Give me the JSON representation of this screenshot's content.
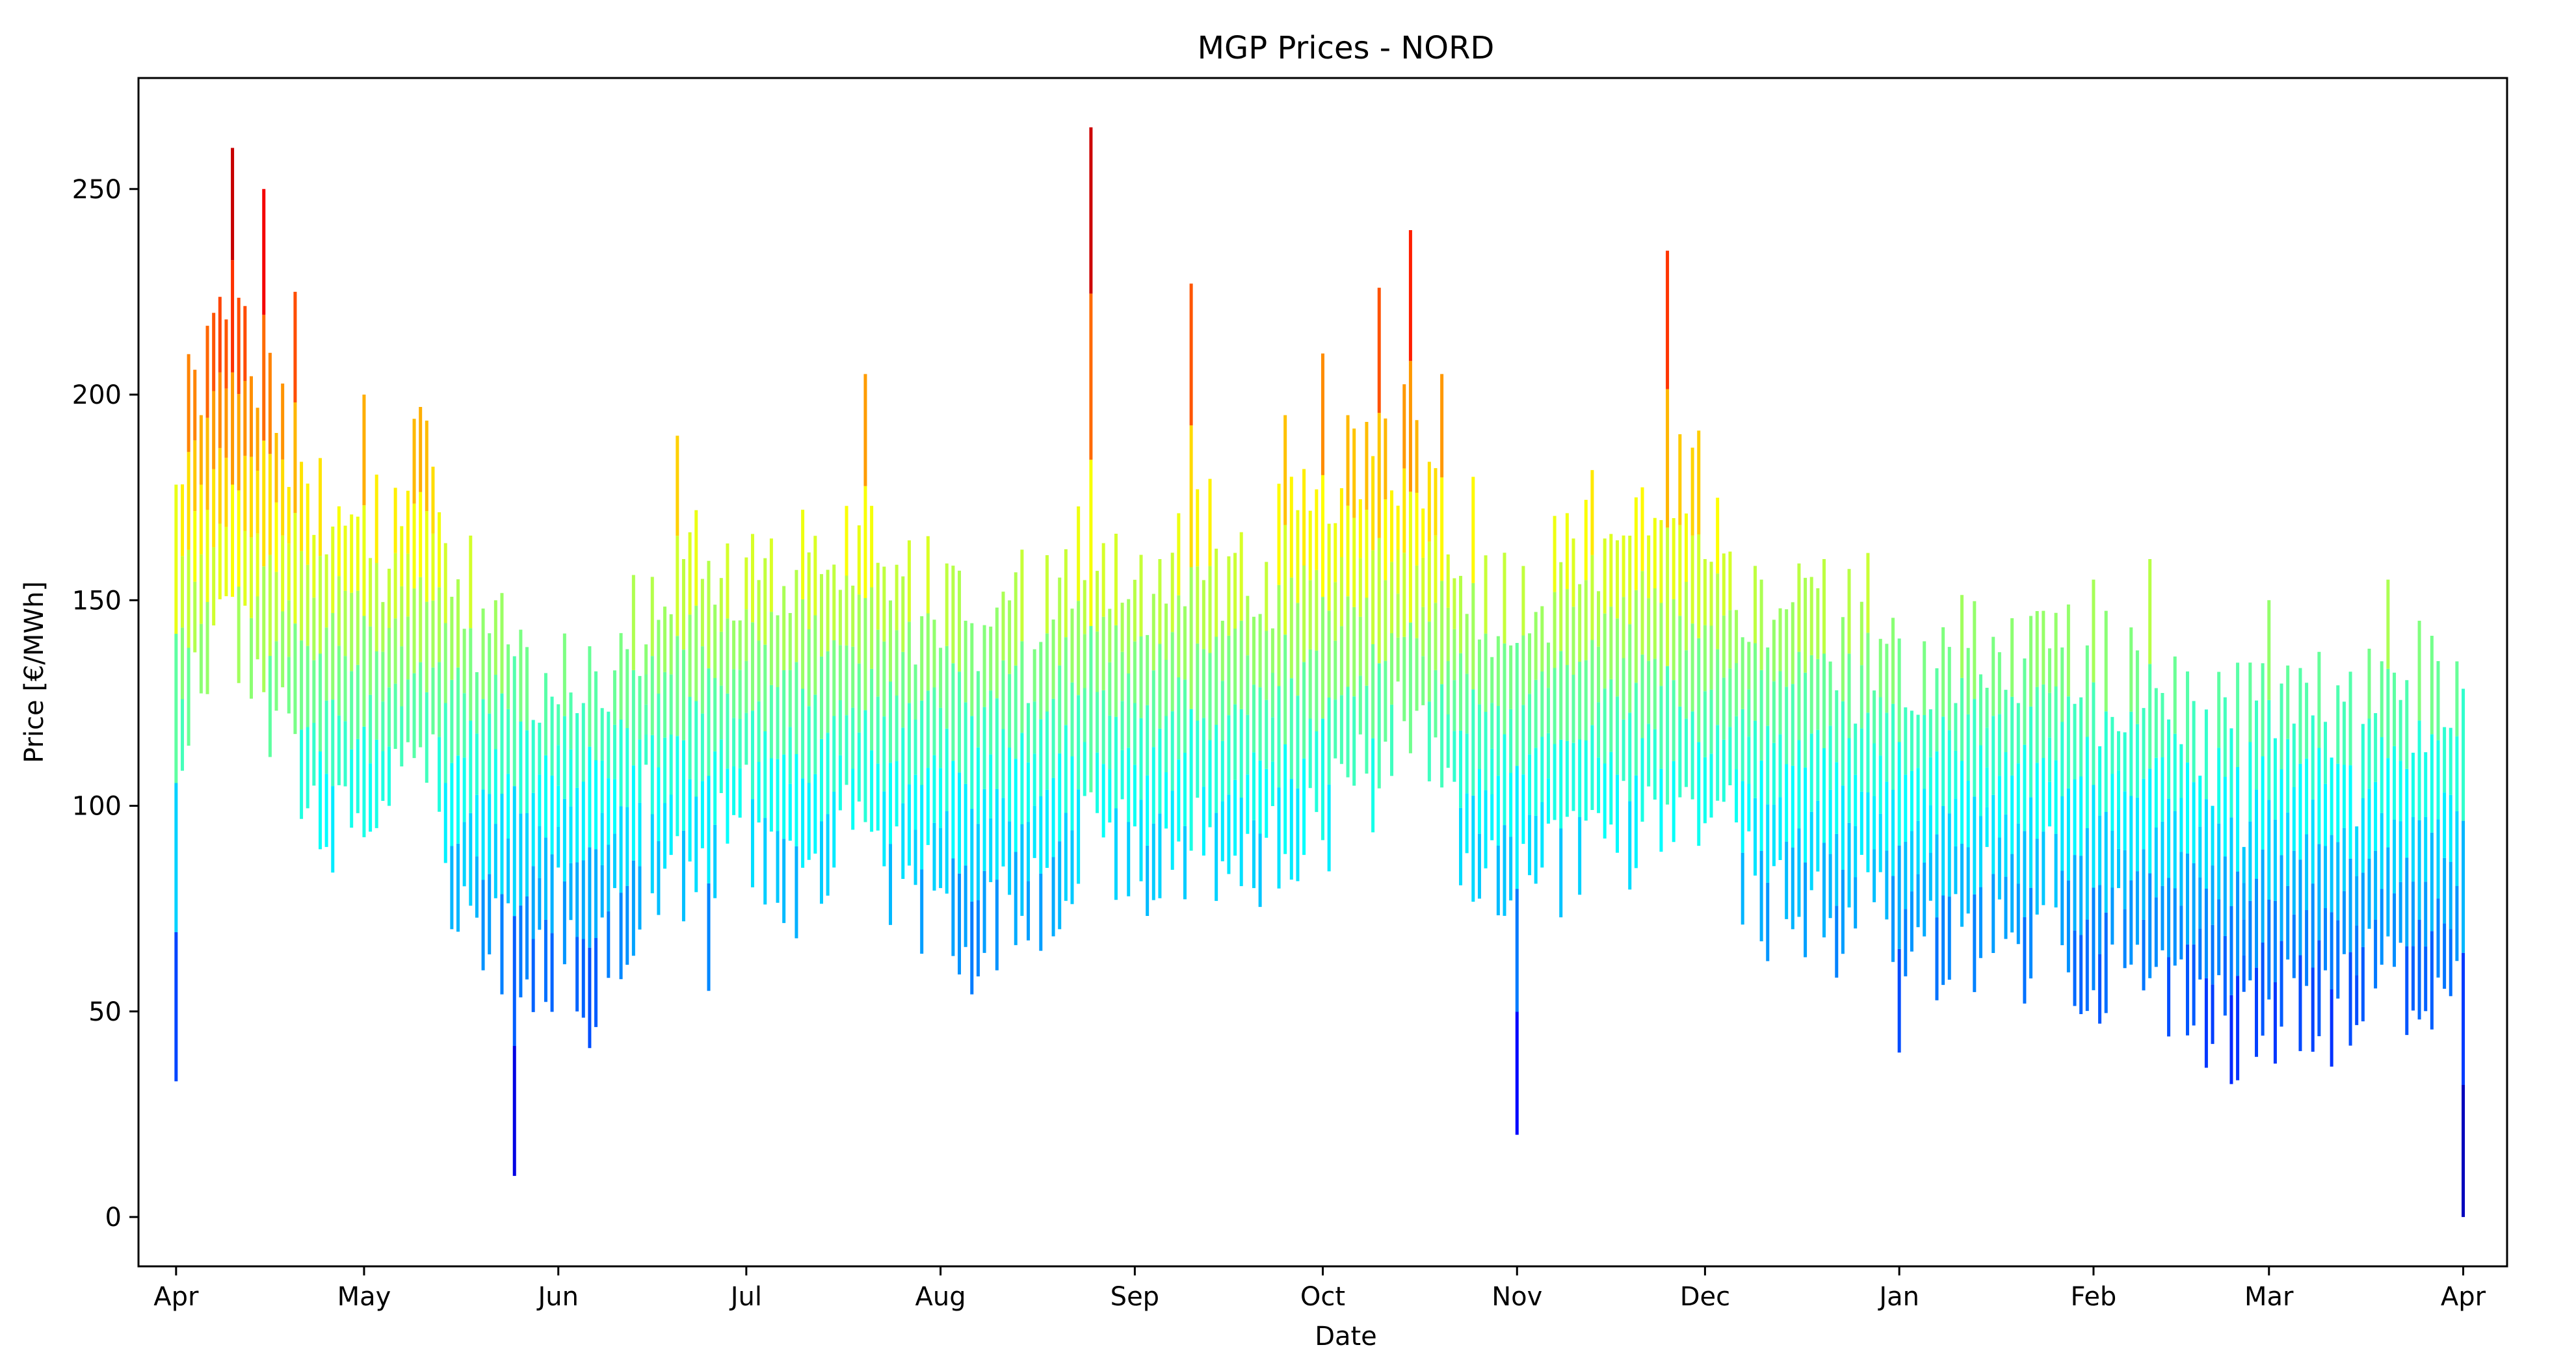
{
  "chart_data": {
    "type": "line",
    "title": "MGP Prices - NORD",
    "xlabel": "Date",
    "ylabel": "Price [€/MWh]",
    "ylim": [
      -12,
      277
    ],
    "xlim": [
      -6,
      372
    ],
    "yticks": [
      0,
      50,
      100,
      150,
      200,
      250
    ],
    "xticks": [
      "Apr",
      "May",
      "Jun",
      "Jul",
      "Aug",
      "Sep",
      "Oct",
      "Nov",
      "Dec",
      "Jan",
      "Feb",
      "Mar",
      "Apr"
    ],
    "grid": false,
    "legend": "none",
    "colormap": "jet",
    "color_range": [
      0,
      265
    ],
    "x": [
      "Apr 01",
      "Apr 05",
      "Apr 10",
      "Apr 15",
      "Apr 20",
      "Apr 25",
      "May 01",
      "May 05",
      "May 10",
      "May 15",
      "May 20",
      "May 25",
      "Jun 01",
      "Jun 05",
      "Jun 10",
      "Jun 15",
      "Jun 20",
      "Jun 25",
      "Jul 01",
      "Jul 05",
      "Jul 10",
      "Jul 15",
      "Jul 20",
      "Jul 25",
      "Aug 01",
      "Aug 05",
      "Aug 10",
      "Aug 15",
      "Aug 20",
      "Aug 25",
      "Sep 01",
      "Sep 05",
      "Sep 10",
      "Sep 15",
      "Sep 20",
      "Sep 25",
      "Oct 01",
      "Oct 05",
      "Oct 10",
      "Oct 15",
      "Oct 20",
      "Oct 25",
      "Nov 01",
      "Nov 05",
      "Nov 10",
      "Nov 15",
      "Nov 20",
      "Nov 25",
      "Dec 01",
      "Dec 05",
      "Dec 10",
      "Dec 15",
      "Dec 20",
      "Dec 25",
      "Jan 01",
      "Jan 05",
      "Jan 10",
      "Jan 15",
      "Jan 20",
      "Jan 25",
      "Feb 01",
      "Feb 05",
      "Feb 10",
      "Feb 15",
      "Feb 20",
      "Feb 25",
      "Mar 01",
      "Mar 05",
      "Mar 10",
      "Mar 15",
      "Mar 20",
      "Mar 25",
      "Apr 01"
    ],
    "series": [
      {
        "values": [
          140,
          170,
          180,
          160,
          150,
          130,
          125,
          130,
          150,
          120,
          110,
          100,
          95,
          90,
          95,
          110,
          120,
          125,
          120,
          125,
          115,
          120,
          135,
          115,
          110,
          100,
          105,
          110,
          115,
          130,
          120,
          115,
          130,
          125,
          120,
          125,
          130,
          135,
          145,
          155,
          135,
          120,
          110,
          115,
          125,
          130,
          125,
          135,
          140,
          120,
          110,
          115,
          105,
          110,
          105,
          100,
          105,
          100,
          95,
          100,
          95,
          90,
          95,
          90,
          85,
          80,
          85,
          90,
          85,
          90,
          95,
          90,
          85
        ]
      },
      {
        "values": [
          33,
          195,
          260,
          250,
          225,
          90,
          200,
          100,
          197,
          70,
          60,
          10,
          85,
          125,
          80,
          110,
          190,
          55,
          110,
          165,
          172,
          85,
          205,
          95,
          80,
          145,
          60,
          125,
          70,
          265,
          95,
          160,
          227,
          145,
          80,
          195,
          210,
          195,
          226,
          240,
          205,
          180,
          20,
          85,
          165,
          165,
          175,
          235,
          160,
          105,
          155,
          70,
          160,
          120,
          40,
          140,
          125,
          90,
          125,
          95,
          155,
          80,
          160,
          115,
          100,
          90,
          150,
          120,
          60,
          95,
          155,
          145,
          0
        ]
      }
    ]
  }
}
